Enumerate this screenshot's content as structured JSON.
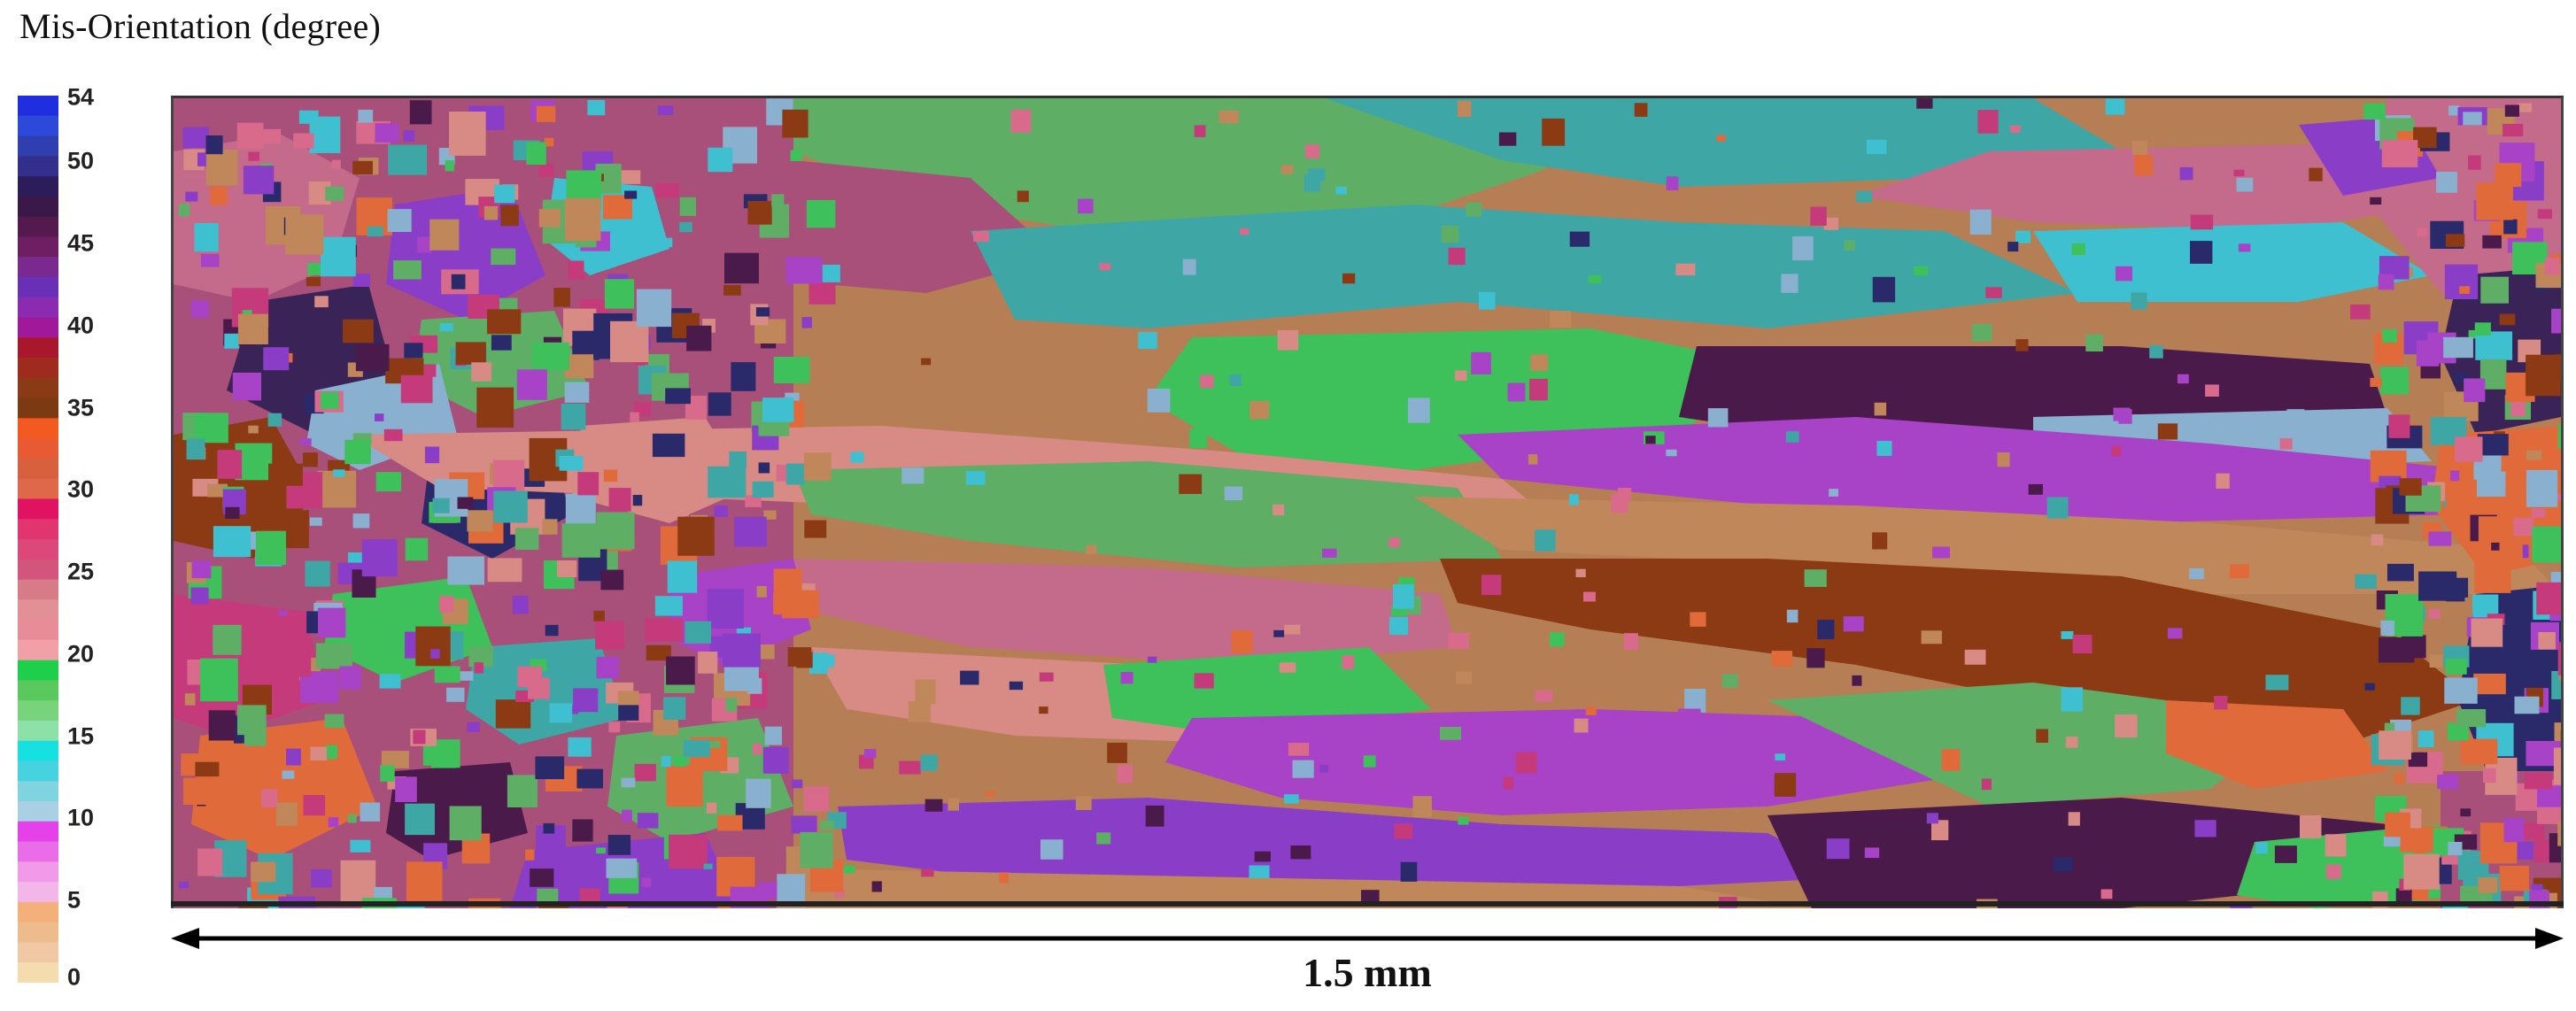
{
  "title": "Mis-Orientation  (degree)",
  "scale_bar_label": "1.5 mm",
  "chart_data": {
    "type": "heatmap",
    "description_of_quantity": "Mis-Orientation (degree)",
    "colorbar": {
      "min": 0,
      "max": 54,
      "tick_labels": [
        "54",
        "50",
        "45",
        "40",
        "35",
        "30",
        "25",
        "20",
        "15",
        "10",
        "5",
        "0"
      ],
      "tick_values": [
        54,
        50,
        45,
        40,
        35,
        30,
        25,
        20,
        15,
        10,
        5,
        0
      ],
      "bands_top_to_bottom": [
        "#1f2fe0",
        "#2c49d9",
        "#2f3fb0",
        "#332f8c",
        "#2c1d5a",
        "#3a184a",
        "#541a4e",
        "#6e1f63",
        "#7a2a8e",
        "#6a2fb7",
        "#8a2bb0",
        "#a0199a",
        "#a8172c",
        "#9e2b1e",
        "#8b3a16",
        "#7c3a12",
        "#f25a20",
        "#e85a34",
        "#d9603f",
        "#e0684a",
        "#e01363",
        "#e2356f",
        "#dc487a",
        "#d3557d",
        "#d87b88",
        "#e29096",
        "#e88c99",
        "#f2a0a8",
        "#1dcf4b",
        "#59c95e",
        "#78d47b",
        "#8de0a8",
        "#17e0e0",
        "#46d2df",
        "#7fd4e0",
        "#a8cfe4",
        "#e442e8",
        "#e86de6",
        "#f09ae8",
        "#f3b6e9",
        "#f4b07a",
        "#eebb8c",
        "#f0c9a4",
        "#f4dcae"
      ]
    },
    "map_palette": {
      "green": "#5fae66",
      "teal": "#3fa6a6",
      "cyan": "#3ec0d0",
      "pink": "#d86a8c",
      "salmon": "#d88a84",
      "purple": "#a842c6",
      "violet": "#8a3ec8",
      "dark_purple": "#4a1a4a",
      "brown": "#8c3a14",
      "tan": "#c0875a",
      "orange": "#e06a3a",
      "magenta": "#c43a7a",
      "bright_green": "#3ec05a",
      "navy": "#2a2a6a",
      "light_blue": "#8ab0d0"
    }
  }
}
